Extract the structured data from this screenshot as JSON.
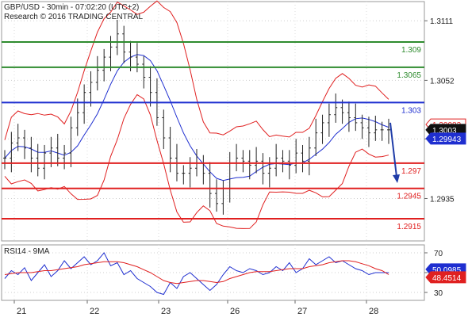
{
  "header": {
    "line1": "GBP/USD - 30min - 07:02:20 (UTC+2)",
    "line2": "Research © 2016 TRADING CENTRAL"
  },
  "chart_data": [
    {
      "type": "candlestick",
      "title": "GBP/USD - 30min - 07:02:20 (UTC+2)",
      "ylim": [
        1.2893,
        1.313
      ],
      "y_ticks": [
        1.3111,
        1.3052,
        1.2994,
        1.2935
      ],
      "y_tick_labels": [
        "1.3111",
        "1.3052",
        "",
        "1.2935"
      ],
      "x_categories": [
        "21",
        "22",
        "23",
        "26",
        "27",
        "28"
      ],
      "levels": [
        {
          "label": "1.309",
          "value": 1.309,
          "color": "#2e8b2e"
        },
        {
          "label": "1.3065",
          "value": 1.3065,
          "color": "#2e8b2e"
        },
        {
          "label": "1.303",
          "value": 1.303,
          "color": "#1f2fd0"
        },
        {
          "label": "1.297",
          "value": 1.297,
          "color": "#e02020"
        },
        {
          "label": "1.2945",
          "value": 1.2945,
          "color": "#e02020"
        },
        {
          "label": "1.2915",
          "value": 1.2915,
          "color": "#e02020"
        }
      ],
      "price_tags": [
        {
          "label": "1.30083",
          "value": 1.30083,
          "style": "outline-red"
        },
        {
          "label": "1.3003",
          "value": 1.3003,
          "style": "black"
        },
        {
          "label": "1.29943",
          "value": 1.29943,
          "style": "blue"
        }
      ],
      "series": [
        {
          "name": "close",
          "x": [
            0,
            4,
            8,
            12,
            16,
            20,
            24,
            28,
            32,
            36,
            40,
            44,
            48,
            52,
            56,
            60,
            64,
            68,
            72,
            76,
            80,
            84,
            88,
            92,
            96,
            100,
            104,
            108,
            112,
            116,
            120,
            124,
            128,
            132,
            136,
            140,
            144,
            148,
            152,
            156,
            160,
            164,
            168,
            172,
            176,
            180,
            184,
            188,
            192,
            196,
            200,
            204,
            208,
            212,
            216,
            220,
            224,
            228,
            232
          ],
          "y": [
            1.2975,
            1.299,
            1.2995,
            1.2985,
            1.2975,
            1.2965,
            1.298,
            1.2985,
            1.2975,
            1.298,
            1.3005,
            1.302,
            1.304,
            1.305,
            1.3062,
            1.3075,
            1.3085,
            1.3098,
            1.308,
            1.3075,
            1.3068,
            1.3055,
            1.304,
            1.3015,
            1.2995,
            1.2975,
            1.296,
            1.296,
            1.2965,
            1.297,
            1.296,
            1.294,
            1.293,
            1.2945,
            1.297,
            1.2975,
            1.2972,
            1.2968,
            1.2972,
            1.296,
            1.2965,
            1.2975,
            1.2972,
            1.2968,
            1.298,
            1.2972,
            1.2985,
            1.3,
            1.301,
            1.3018,
            1.3025,
            1.302,
            1.3015,
            1.301,
            1.3005,
            1.3,
            1.3003,
            1.3003,
            1.3003
          ]
        }
      ],
      "forecast_arrow": {
        "from": 1.301,
        "to": 1.2955
      }
    },
    {
      "type": "line",
      "title": "RSI14 - 9MA",
      "ylim": [
        22,
        78
      ],
      "y_ticks": [
        70,
        50,
        30
      ],
      "y_tick_labels": [
        "70",
        "",
        "30"
      ],
      "series": [
        {
          "name": "RSI14",
          "color": "#1f2fd0",
          "y": [
            44,
            52,
            48,
            55,
            42,
            50,
            58,
            46,
            52,
            62,
            54,
            60,
            66,
            58,
            62,
            70,
            57,
            60,
            48,
            52,
            44,
            40,
            36,
            30,
            28,
            40,
            34,
            46,
            50,
            44,
            38,
            32,
            38,
            48,
            56,
            52,
            50,
            54,
            52,
            48,
            50,
            56,
            52,
            60,
            50,
            54,
            64,
            58,
            62,
            66,
            60,
            62,
            58,
            54,
            52,
            48,
            50,
            50,
            50
          ]
        },
        {
          "name": "9MA",
          "color": "#e02020",
          "y": [
            48,
            49,
            50,
            50,
            50,
            51,
            52,
            52,
            53,
            54,
            55,
            56,
            58,
            59,
            60,
            61,
            61,
            61,
            60,
            58,
            56,
            53,
            50,
            46,
            42,
            40,
            39,
            40,
            41,
            42,
            42,
            41,
            40,
            41,
            44,
            46,
            48,
            50,
            51,
            51,
            51,
            52,
            53,
            54,
            54,
            54,
            56,
            57,
            58,
            60,
            61,
            62,
            62,
            61,
            59,
            57,
            54,
            52,
            48
          ]
        }
      ],
      "value_tags": [
        {
          "label": "50.0985",
          "value": 50.0985,
          "style": "blue"
        },
        {
          "label": "48.4514",
          "value": 48.4514,
          "style": "red"
        }
      ]
    }
  ]
}
